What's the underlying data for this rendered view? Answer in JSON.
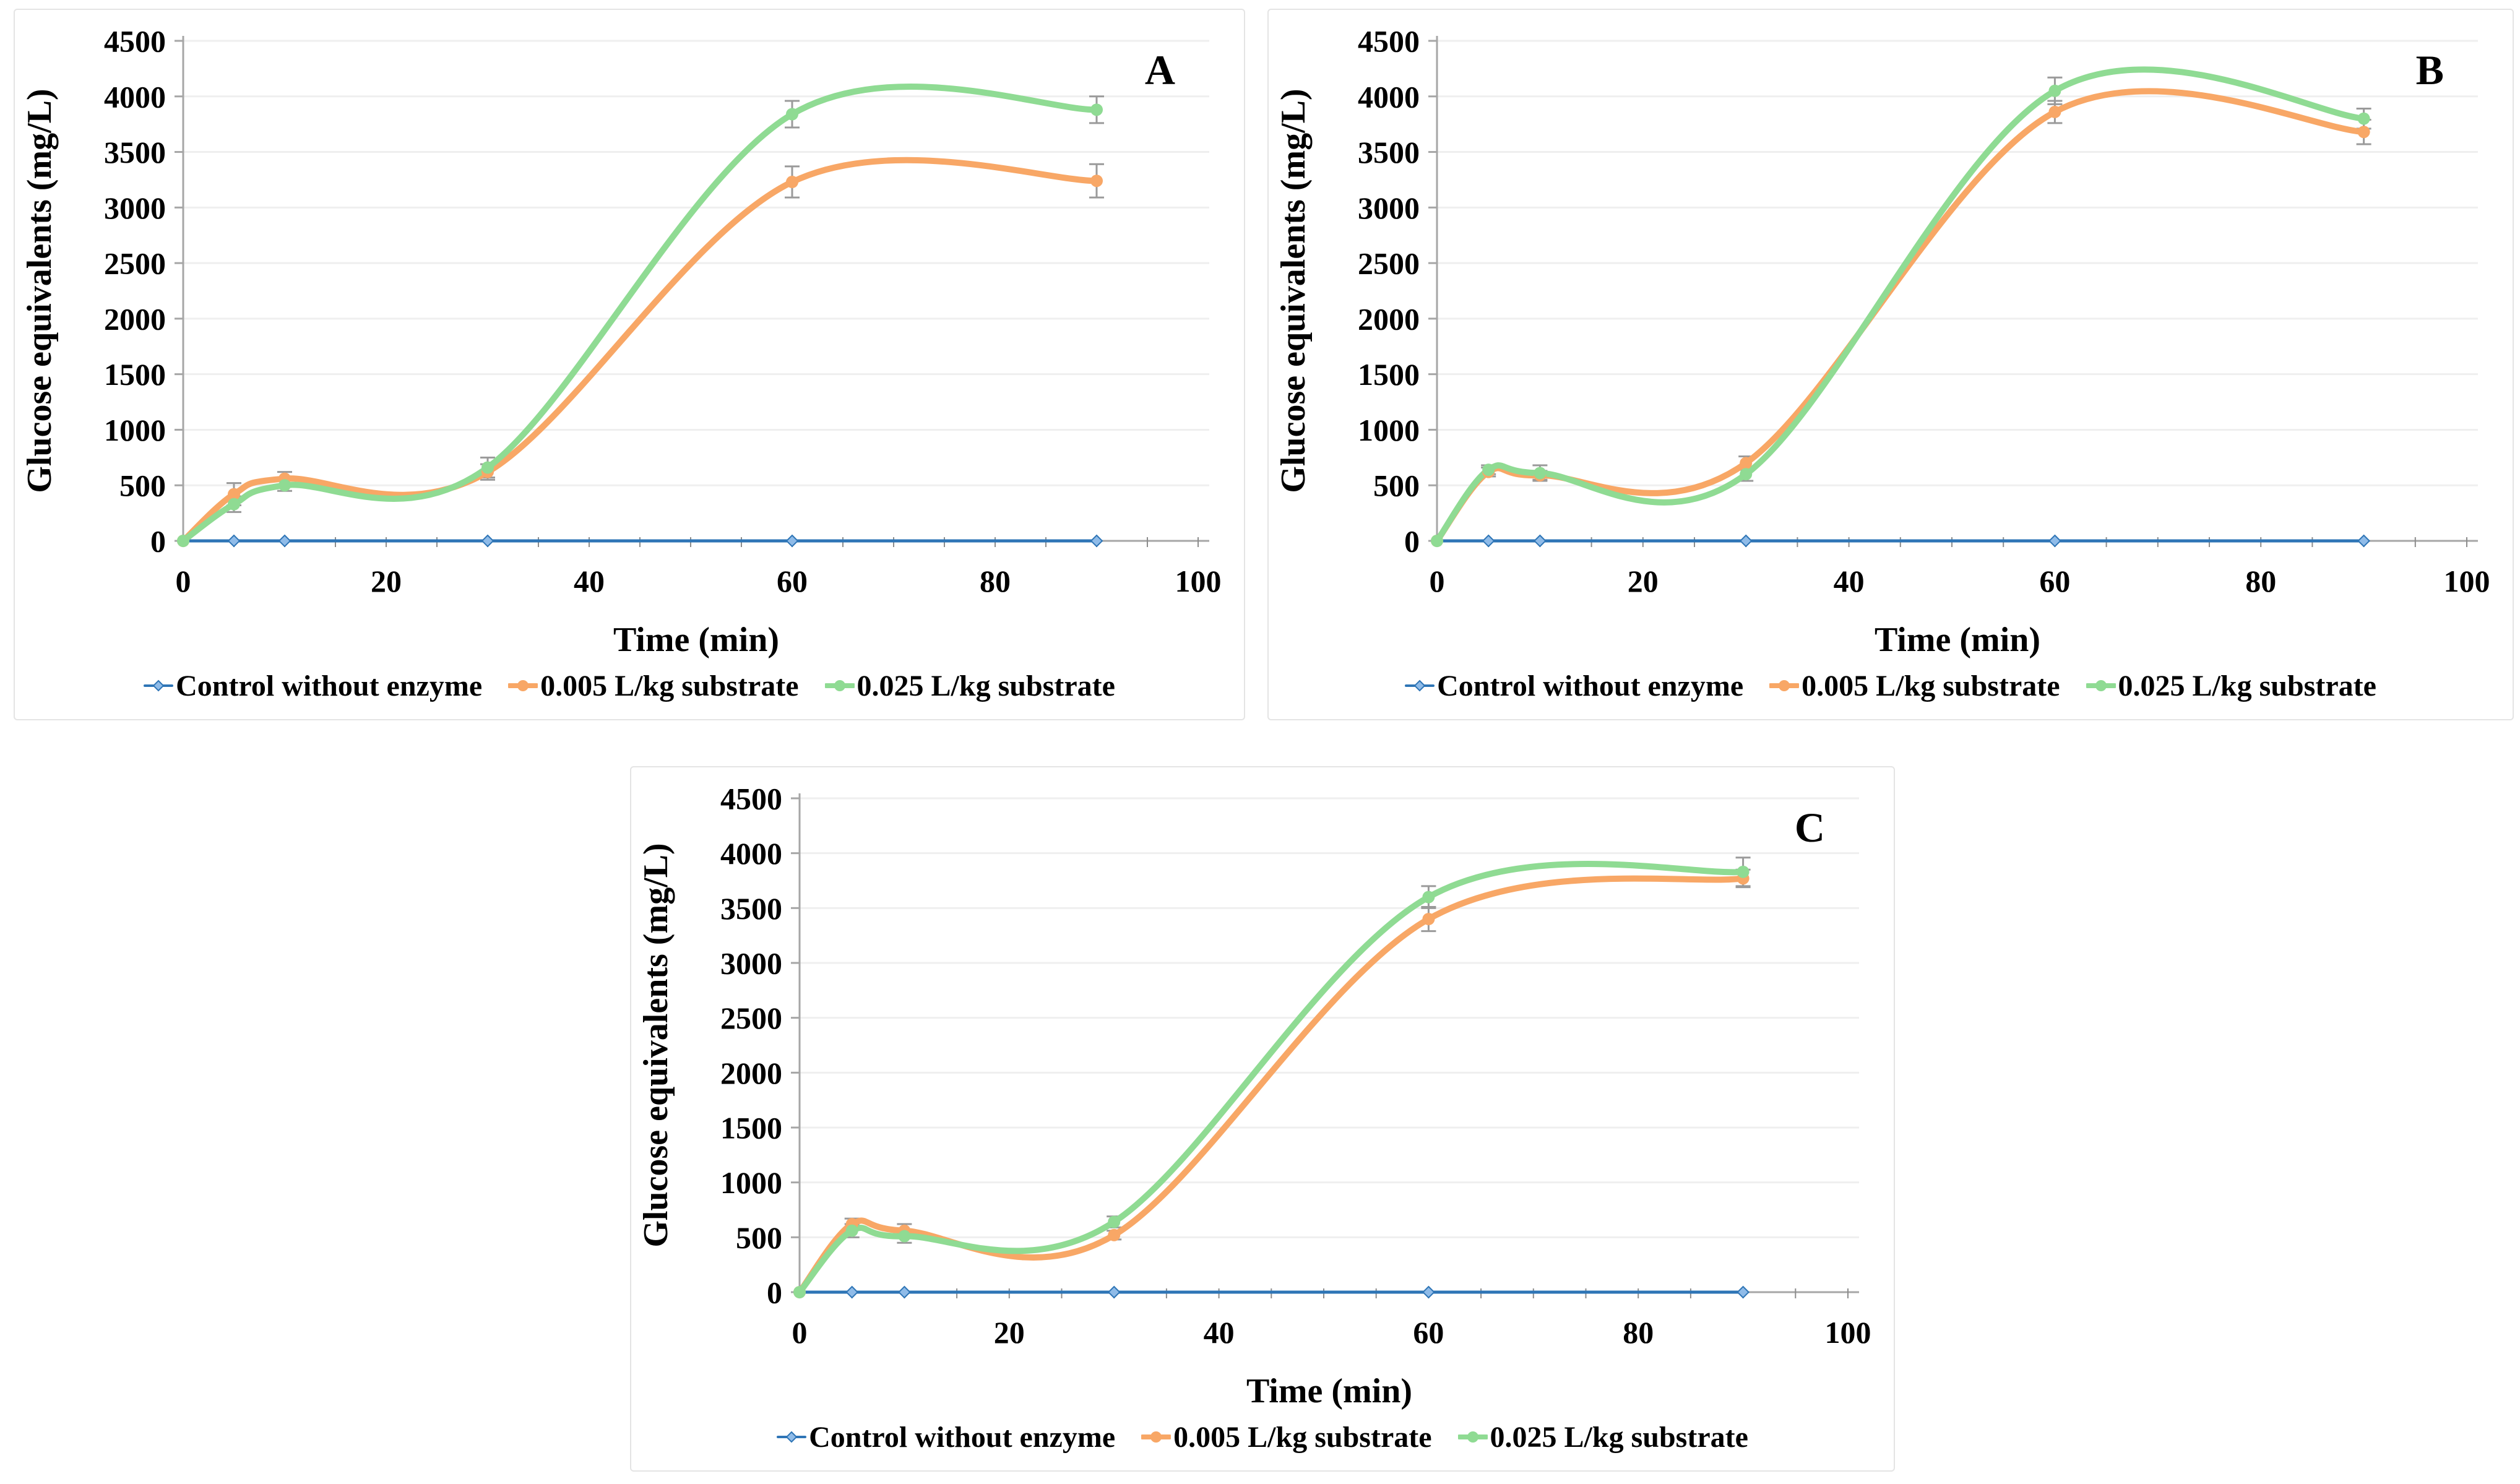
{
  "figure": {
    "background": "#ffffff",
    "panel_labels": [
      "A",
      "B",
      "C"
    ]
  },
  "styles": {
    "axis_color": "#A6A6A6",
    "tick_color": "#8C8C8C",
    "grid_color": "#EFEFEF",
    "error_bar_color": "#9A9A9A",
    "text_color": "#000000",
    "panel_border": "#E4E4E4",
    "control_blue": "#2E75B6",
    "control_marker_fill": "#8FBBE8",
    "orange": "#F8A766",
    "green": "#8FDB93"
  },
  "chart_data": [
    {
      "type": "line",
      "panel_label": "A",
      "xlabel": "Time (min)",
      "ylabel": "Glucose equivalents (mg/L)",
      "xlim": [
        0,
        100
      ],
      "ylim": [
        0,
        4500
      ],
      "x_ticks": [
        0,
        20,
        40,
        60,
        80,
        100
      ],
      "y_ticks": [
        0,
        500,
        1000,
        1500,
        2000,
        2500,
        3000,
        3500,
        4000,
        4500
      ],
      "minor_x_tick_step": 5,
      "grid": "horizontal",
      "legend_position": "bottom",
      "smoothing": "spline",
      "x": [
        0,
        5,
        10,
        30,
        60,
        90
      ],
      "series": [
        {
          "name": "Control without enzyme",
          "color": "#2E75B6",
          "marker": "diamond",
          "marker_fill": "#8FBBE8",
          "line_width": 5,
          "values": [
            0,
            0,
            0,
            0,
            0,
            0
          ],
          "errors": [
            0,
            0,
            0,
            0,
            0,
            0
          ]
        },
        {
          "name": "0.005 L/kg substrate",
          "color": "#F8A766",
          "marker": "circle",
          "marker_fill": "#F8A766",
          "line_width": 10,
          "values": [
            0,
            420,
            560,
            620,
            3230,
            3240
          ],
          "errors": [
            0,
            100,
            60,
            70,
            140,
            150
          ]
        },
        {
          "name": "0.025 L/kg substrate",
          "color": "#8FDB93",
          "marker": "circle",
          "marker_fill": "#8FDB93",
          "line_width": 10,
          "values": [
            0,
            330,
            500,
            660,
            3840,
            3880
          ],
          "errors": [
            0,
            70,
            50,
            90,
            120,
            120
          ]
        }
      ]
    },
    {
      "type": "line",
      "panel_label": "B",
      "xlabel": "Time (min)",
      "ylabel": "Glucose equivalents (mg/L)",
      "xlim": [
        0,
        100
      ],
      "ylim": [
        0,
        4500
      ],
      "x_ticks": [
        0,
        20,
        40,
        60,
        80,
        100
      ],
      "y_ticks": [
        0,
        500,
        1000,
        1500,
        2000,
        2500,
        3000,
        3500,
        4000,
        4500
      ],
      "minor_x_tick_step": 5,
      "grid": "horizontal",
      "legend_position": "bottom",
      "smoothing": "spline",
      "x": [
        0,
        5,
        10,
        30,
        60,
        90
      ],
      "series": [
        {
          "name": "Control without enzyme",
          "color": "#2E75B6",
          "marker": "diamond",
          "marker_fill": "#8FBBE8",
          "line_width": 5,
          "values": [
            0,
            0,
            0,
            0,
            0,
            0
          ],
          "errors": [
            0,
            0,
            0,
            0,
            0,
            0
          ]
        },
        {
          "name": "0.005 L/kg substrate",
          "color": "#F8A766",
          "marker": "circle",
          "marker_fill": "#F8A766",
          "line_width": 10,
          "values": [
            0,
            620,
            590,
            700,
            3860,
            3680
          ],
          "errors": [
            0,
            40,
            40,
            60,
            100,
            110
          ]
        },
        {
          "name": "0.025 L/kg substrate",
          "color": "#8FDB93",
          "marker": "circle",
          "marker_fill": "#8FDB93",
          "line_width": 10,
          "values": [
            0,
            640,
            610,
            600,
            4050,
            3800
          ],
          "errors": [
            0,
            40,
            70,
            60,
            120,
            90
          ]
        }
      ]
    },
    {
      "type": "line",
      "panel_label": "C",
      "xlabel": "Time (min)",
      "ylabel": "Glucose equivalents (mg/L)",
      "xlim": [
        0,
        100
      ],
      "ylim": [
        0,
        4500
      ],
      "x_ticks": [
        0,
        20,
        40,
        60,
        80,
        100
      ],
      "y_ticks": [
        0,
        500,
        1000,
        1500,
        2000,
        2500,
        3000,
        3500,
        4000,
        4500
      ],
      "minor_x_tick_step": 5,
      "grid": "horizontal",
      "legend_position": "bottom",
      "smoothing": "spline",
      "x": [
        0,
        5,
        10,
        30,
        60,
        90
      ],
      "series": [
        {
          "name": "Control without enzyme",
          "color": "#2E75B6",
          "marker": "diamond",
          "marker_fill": "#8FBBE8",
          "line_width": 5,
          "values": [
            0,
            0,
            0,
            0,
            0,
            0
          ],
          "errors": [
            0,
            0,
            0,
            0,
            0,
            0
          ]
        },
        {
          "name": "0.005 L/kg substrate",
          "color": "#F8A766",
          "marker": "circle",
          "marker_fill": "#F8A766",
          "line_width": 10,
          "values": [
            0,
            620,
            560,
            520,
            3400,
            3770
          ],
          "errors": [
            0,
            50,
            60,
            40,
            110,
            80
          ]
        },
        {
          "name": "0.025 L/kg substrate",
          "color": "#8FDB93",
          "marker": "circle",
          "marker_fill": "#8FDB93",
          "line_width": 10,
          "values": [
            0,
            560,
            510,
            640,
            3600,
            3830
          ],
          "errors": [
            0,
            60,
            60,
            50,
            100,
            130
          ]
        }
      ]
    }
  ]
}
